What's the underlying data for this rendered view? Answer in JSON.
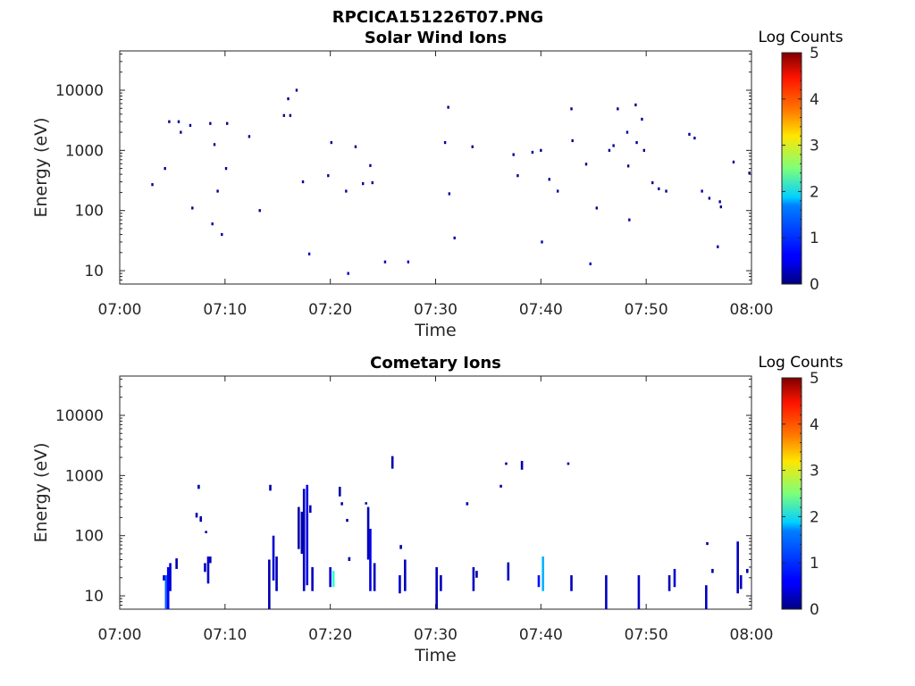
{
  "figure": {
    "title": "RPCICA151226T07.PNG"
  },
  "colorbar": {
    "title": "Log Counts",
    "ticks": [
      "0",
      "1",
      "2",
      "3",
      "4",
      "5"
    ],
    "range": [
      0,
      5
    ],
    "colormap": "jet"
  },
  "chart_data": [
    {
      "type": "heatmap",
      "title": "Solar Wind Ions",
      "xlabel": "Time",
      "ylabel": "Energy (eV)",
      "x_unit": "minutes after 07:00",
      "xlim": [
        0,
        60
      ],
      "x_ticks": [
        {
          "v": 0,
          "label": "07:00"
        },
        {
          "v": 10,
          "label": "07:10"
        },
        {
          "v": 20,
          "label": "07:20"
        },
        {
          "v": 30,
          "label": "07:30"
        },
        {
          "v": 40,
          "label": "07:40"
        },
        {
          "v": 50,
          "label": "07:50"
        },
        {
          "v": 60,
          "label": "08:00"
        }
      ],
      "y_scale": "log",
      "ylim": [
        6,
        45000
      ],
      "y_ticks": [
        {
          "v": 10,
          "label": "10"
        },
        {
          "v": 100,
          "label": "100"
        },
        {
          "v": 1000,
          "label": "1000"
        },
        {
          "v": 10000,
          "label": "10000"
        }
      ],
      "points": [
        [
          3.1,
          270,
          0.1
        ],
        [
          4.3,
          500,
          0.1
        ],
        [
          4.7,
          3000,
          0.1
        ],
        [
          5.6,
          3000,
          0.1
        ],
        [
          5.8,
          2000,
          0.1
        ],
        [
          6.7,
          2600,
          0.1
        ],
        [
          6.9,
          110,
          0.1
        ],
        [
          8.6,
          2800,
          0.1
        ],
        [
          8.8,
          60,
          0.2
        ],
        [
          9.0,
          1250,
          0.1
        ],
        [
          9.3,
          210,
          0.1
        ],
        [
          9.7,
          40,
          0.2
        ],
        [
          10.1,
          500,
          0.1
        ],
        [
          10.2,
          2800,
          0.1
        ],
        [
          12.3,
          1700,
          0.1
        ],
        [
          13.3,
          100,
          0.1
        ],
        [
          15.6,
          3800,
          0.1
        ],
        [
          16.0,
          7200,
          0.1
        ],
        [
          16.2,
          3800,
          0.1
        ],
        [
          16.8,
          10000,
          0.1
        ],
        [
          17.4,
          300,
          0.1
        ],
        [
          18.0,
          19,
          0.3
        ],
        [
          19.8,
          380,
          0.1
        ],
        [
          20.1,
          1350,
          0.1
        ],
        [
          21.5,
          210,
          0.1
        ],
        [
          21.7,
          9,
          0.3
        ],
        [
          22.4,
          1150,
          0.1
        ],
        [
          23.1,
          280,
          0.1
        ],
        [
          23.8,
          560,
          0.1
        ],
        [
          24.0,
          290,
          0.1
        ],
        [
          25.2,
          14,
          0.3
        ],
        [
          27.4,
          14,
          0.3
        ],
        [
          30.9,
          1350,
          0.1
        ],
        [
          31.2,
          5200,
          0.1
        ],
        [
          31.3,
          190,
          0.1
        ],
        [
          31.8,
          35,
          0.2
        ],
        [
          33.5,
          1150,
          0.1
        ],
        [
          37.4,
          850,
          0.1
        ],
        [
          37.8,
          380,
          0.1
        ],
        [
          39.2,
          930,
          0.1
        ],
        [
          40.0,
          1000,
          0.1
        ],
        [
          40.1,
          30,
          0.2
        ],
        [
          40.8,
          330,
          0.1
        ],
        [
          41.6,
          210,
          0.1
        ],
        [
          42.9,
          4900,
          0.1
        ],
        [
          43.0,
          1450,
          0.1
        ],
        [
          44.3,
          590,
          0.1
        ],
        [
          44.7,
          13,
          0.3
        ],
        [
          45.3,
          110,
          0.1
        ],
        [
          46.5,
          1000,
          0.1
        ],
        [
          46.9,
          1200,
          0.1
        ],
        [
          47.3,
          4900,
          0.1
        ],
        [
          48.2,
          2000,
          0.1
        ],
        [
          48.3,
          550,
          0.1
        ],
        [
          48.4,
          70,
          0.2
        ],
        [
          49.0,
          5700,
          0.1
        ],
        [
          49.1,
          1350,
          0.1
        ],
        [
          49.6,
          3300,
          0.1
        ],
        [
          49.8,
          1000,
          0.1
        ],
        [
          50.6,
          290,
          0.1
        ],
        [
          51.2,
          230,
          0.1
        ],
        [
          51.9,
          210,
          0.1
        ],
        [
          54.1,
          1850,
          0.1
        ],
        [
          54.6,
          1600,
          0.1
        ],
        [
          55.3,
          210,
          0.1
        ],
        [
          56.0,
          160,
          0.1
        ],
        [
          56.8,
          25,
          0.2
        ],
        [
          57.0,
          140,
          0.1
        ],
        [
          57.1,
          115,
          0.1
        ],
        [
          58.3,
          640,
          0.1
        ],
        [
          59.8,
          420,
          0.1
        ]
      ]
    },
    {
      "type": "heatmap",
      "title": "Cometary Ions",
      "xlabel": "Time",
      "ylabel": "Energy (eV)",
      "x_unit": "minutes after 07:00",
      "xlim": [
        0,
        60
      ],
      "x_ticks": [
        {
          "v": 0,
          "label": "07:00"
        },
        {
          "v": 10,
          "label": "07:10"
        },
        {
          "v": 20,
          "label": "07:20"
        },
        {
          "v": 30,
          "label": "07:30"
        },
        {
          "v": 40,
          "label": "07:40"
        },
        {
          "v": 50,
          "label": "07:50"
        },
        {
          "v": 60,
          "label": "08:00"
        }
      ],
      "y_scale": "log",
      "ylim": [
        6,
        45000
      ],
      "y_ticks": [
        {
          "v": 10,
          "label": "10"
        },
        {
          "v": 100,
          "label": "100"
        },
        {
          "v": 1000,
          "label": "1000"
        },
        {
          "v": 10000,
          "label": "10000"
        }
      ],
      "bars": [
        [
          4.2,
          18,
          22,
          0.3
        ],
        [
          4.4,
          6,
          22,
          1.1
        ],
        [
          4.6,
          6,
          30,
          0.6
        ],
        [
          4.8,
          12,
          35,
          0.4
        ],
        [
          5.4,
          28,
          42,
          0.2
        ],
        [
          7.3,
          200,
          240,
          0.2
        ],
        [
          7.5,
          600,
          700,
          0.2
        ],
        [
          7.7,
          170,
          210,
          0.2
        ],
        [
          8.1,
          25,
          35,
          0.3
        ],
        [
          8.2,
          110,
          120,
          0.2
        ],
        [
          8.4,
          16,
          45,
          0.4
        ],
        [
          8.6,
          35,
          45,
          0.3
        ],
        [
          14.2,
          6,
          40,
          0.2
        ],
        [
          14.3,
          560,
          700,
          0.2
        ],
        [
          14.6,
          18,
          100,
          0.4
        ],
        [
          14.9,
          12,
          45,
          0.3
        ],
        [
          17.0,
          60,
          300,
          0.2
        ],
        [
          17.3,
          50,
          250,
          0.2
        ],
        [
          17.5,
          12,
          600,
          0.3
        ],
        [
          17.8,
          15,
          700,
          0.5
        ],
        [
          18.1,
          240,
          320,
          0.3
        ],
        [
          18.3,
          12,
          30,
          0.3
        ],
        [
          20.0,
          14,
          30,
          0.4
        ],
        [
          20.3,
          14,
          26,
          2.1
        ],
        [
          20.9,
          450,
          650,
          0.2
        ],
        [
          21.1,
          320,
          360,
          0.2
        ],
        [
          21.6,
          170,
          190,
          0.2
        ],
        [
          21.8,
          38,
          44,
          0.2
        ],
        [
          23.4,
          330,
          360,
          0.2
        ],
        [
          23.6,
          40,
          300,
          0.3
        ],
        [
          23.8,
          12,
          130,
          0.5
        ],
        [
          24.2,
          12,
          35,
          0.3
        ],
        [
          25.9,
          1300,
          2100,
          0.2
        ],
        [
          26.6,
          11,
          22,
          0.4
        ],
        [
          26.7,
          60,
          70,
          0.2
        ],
        [
          27.1,
          12,
          40,
          0.3
        ],
        [
          30.1,
          6,
          30,
          0.3
        ],
        [
          30.5,
          12,
          22,
          0.3
        ],
        [
          33.0,
          320,
          360,
          0.2
        ],
        [
          33.6,
          12,
          30,
          0.3
        ],
        [
          33.9,
          20,
          26,
          0.2
        ],
        [
          36.2,
          630,
          700,
          0.2
        ],
        [
          36.7,
          1500,
          1650,
          0.2
        ],
        [
          36.9,
          18,
          36,
          0.3
        ],
        [
          38.2,
          1250,
          1750,
          0.2
        ],
        [
          39.8,
          14,
          22,
          0.7
        ],
        [
          40.2,
          12,
          45,
          1.5
        ],
        [
          42.6,
          1500,
          1650,
          0.2
        ],
        [
          42.9,
          12,
          22,
          0.3
        ],
        [
          46.2,
          6,
          22,
          0.3
        ],
        [
          49.3,
          6,
          22,
          0.3
        ],
        [
          52.2,
          12,
          22,
          0.3
        ],
        [
          52.7,
          14,
          28,
          0.4
        ],
        [
          55.7,
          6,
          15,
          0.3
        ],
        [
          55.8,
          70,
          78,
          0.2
        ],
        [
          56.3,
          24,
          28,
          0.2
        ],
        [
          58.7,
          11,
          80,
          0.3
        ],
        [
          59.0,
          13,
          22,
          0.3
        ],
        [
          59.6,
          24,
          28,
          0.2
        ]
      ]
    }
  ]
}
